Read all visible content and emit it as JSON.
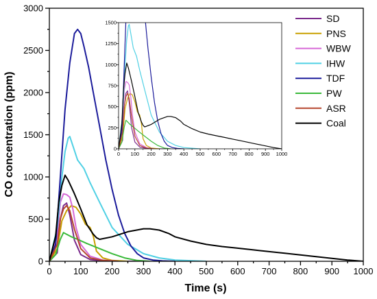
{
  "chart_data": [
    {
      "type": "line",
      "xlabel": "Time (s)",
      "ylabel": "CO concentration (ppm)",
      "xlim": [
        0,
        1000
      ],
      "ylim": [
        0,
        3000
      ],
      "xticks": [
        0,
        100,
        200,
        300,
        400,
        500,
        600,
        700,
        800,
        900,
        1000
      ],
      "yticks": [
        0,
        500,
        1000,
        1500,
        2000,
        2500,
        3000
      ],
      "legend_position": "top-right",
      "series": [
        {
          "name": "SD",
          "color": "#7b2a8c",
          "x": [
            0,
            25,
            35,
            45,
            55,
            65,
            80,
            100,
            130,
            170,
            220,
            300
          ],
          "y": [
            0,
            100,
            500,
            660,
            690,
            550,
            250,
            80,
            20,
            5,
            0,
            0
          ]
        },
        {
          "name": "PNS",
          "color": "#c8a000",
          "x": [
            0,
            25,
            40,
            55,
            70,
            85,
            100,
            115,
            130,
            140,
            150,
            170,
            200,
            250
          ],
          "y": [
            0,
            150,
            480,
            600,
            660,
            640,
            560,
            440,
            400,
            300,
            120,
            40,
            10,
            0
          ]
        },
        {
          "name": "WBW",
          "color": "#d668d6",
          "x": [
            0,
            25,
            35,
            45,
            55,
            65,
            75,
            85,
            100,
            130,
            170,
            220
          ],
          "y": [
            0,
            300,
            700,
            800,
            790,
            760,
            620,
            400,
            200,
            60,
            15,
            0
          ]
        },
        {
          "name": "IHW",
          "color": "#4fd0e4",
          "x": [
            0,
            25,
            40,
            50,
            60,
            65,
            75,
            90,
            110,
            130,
            160,
            200,
            250,
            300,
            350,
            400,
            500
          ],
          "y": [
            0,
            400,
            1000,
            1300,
            1460,
            1480,
            1370,
            1200,
            1100,
            930,
            700,
            400,
            200,
            90,
            40,
            15,
            0
          ]
        },
        {
          "name": "TDF",
          "color": "#1a1a9a",
          "x": [
            0,
            20,
            35,
            50,
            65,
            80,
            90,
            100,
            110,
            125,
            140,
            160,
            180,
            200,
            220,
            240,
            260,
            280,
            300,
            330,
            360,
            400
          ],
          "y": [
            0,
            200,
            1000,
            1800,
            2350,
            2700,
            2750,
            2700,
            2550,
            2300,
            2000,
            1600,
            1200,
            850,
            550,
            330,
            180,
            90,
            40,
            15,
            5,
            0
          ]
        },
        {
          "name": "PW",
          "color": "#39b939",
          "x": [
            0,
            20,
            35,
            45,
            55,
            70,
            90,
            120,
            160,
            200,
            240,
            280,
            320
          ],
          "y": [
            0,
            80,
            260,
            340,
            320,
            290,
            260,
            210,
            150,
            90,
            40,
            10,
            0
          ]
        },
        {
          "name": "ASR",
          "color": "#b5452c",
          "x": [
            0,
            25,
            35,
            45,
            55,
            65,
            80,
            100,
            130,
            170,
            220
          ],
          "y": [
            0,
            200,
            500,
            620,
            660,
            600,
            380,
            150,
            40,
            10,
            0
          ]
        },
        {
          "name": "Coal",
          "color": "#000000",
          "x": [
            0,
            20,
            30,
            40,
            50,
            60,
            70,
            80,
            100,
            120,
            140,
            150,
            160,
            200,
            250,
            300,
            320,
            350,
            380,
            400,
            450,
            500,
            550,
            600,
            650,
            700,
            750,
            800,
            850,
            900,
            950,
            1000
          ],
          "y": [
            0,
            300,
            700,
            900,
            1020,
            960,
            880,
            800,
            620,
            430,
            320,
            280,
            260,
            290,
            350,
            385,
            385,
            370,
            330,
            290,
            240,
            200,
            175,
            155,
            135,
            115,
            95,
            75,
            55,
            35,
            15,
            0
          ]
        }
      ]
    },
    {
      "type": "line",
      "inset": true,
      "xlim": [
        0,
        1000
      ],
      "ylim": [
        0,
        1500
      ],
      "xticks": [
        0,
        100,
        200,
        300,
        400,
        500,
        600,
        700,
        800,
        900,
        1000
      ],
      "yticks": [
        0,
        250,
        500,
        750,
        1000,
        1250,
        1500
      ]
    }
  ]
}
